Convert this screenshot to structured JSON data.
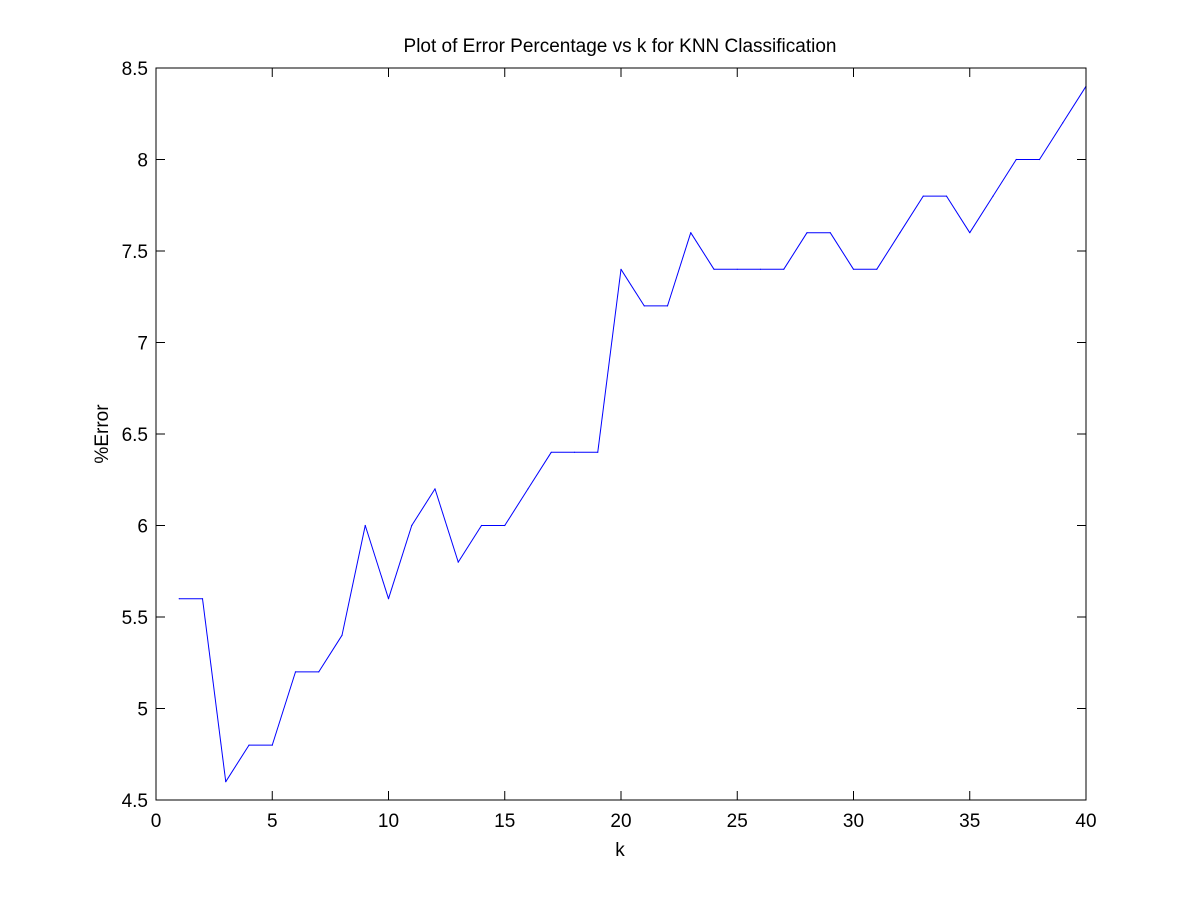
{
  "chart_data": {
    "type": "line",
    "title": "Plot of Error Percentage vs k for KNN Classification",
    "xlabel": "k",
    "ylabel": "%Error",
    "xlim": [
      0,
      40
    ],
    "ylim": [
      4.5,
      8.5
    ],
    "xticks": [
      0,
      5,
      10,
      15,
      20,
      25,
      30,
      35,
      40
    ],
    "yticks": [
      4.5,
      5,
      5.5,
      6,
      6.5,
      7,
      7.5,
      8,
      8.5
    ],
    "xtick_labels": [
      "0",
      "5",
      "10",
      "15",
      "20",
      "25",
      "30",
      "35",
      "40"
    ],
    "ytick_labels": [
      "4.5",
      "5",
      "5.5",
      "6",
      "6.5",
      "7",
      "7.5",
      "8",
      "8.5"
    ],
    "grid": false,
    "series": [
      {
        "color": "#0000ff",
        "x": [
          1,
          2,
          3,
          4,
          5,
          6,
          7,
          8,
          9,
          10,
          11,
          12,
          13,
          14,
          15,
          16,
          17,
          18,
          19,
          20,
          21,
          22,
          23,
          24,
          25,
          26,
          27,
          28,
          29,
          30,
          31,
          32,
          33,
          34,
          35,
          36,
          37,
          38,
          39,
          40
        ],
        "values": [
          5.6,
          5.6,
          4.6,
          4.8,
          4.8,
          5.2,
          5.2,
          5.4,
          6.0,
          5.6,
          6.0,
          6.2,
          5.8,
          6.0,
          6.0,
          6.2,
          6.4,
          6.4,
          6.4,
          7.4,
          7.2,
          7.2,
          7.6,
          7.4,
          7.4,
          7.4,
          7.4,
          7.6,
          7.6,
          7.4,
          7.4,
          7.6,
          7.8,
          7.8,
          7.6,
          7.8,
          8.0,
          8.0,
          8.2,
          8.4
        ]
      }
    ]
  }
}
